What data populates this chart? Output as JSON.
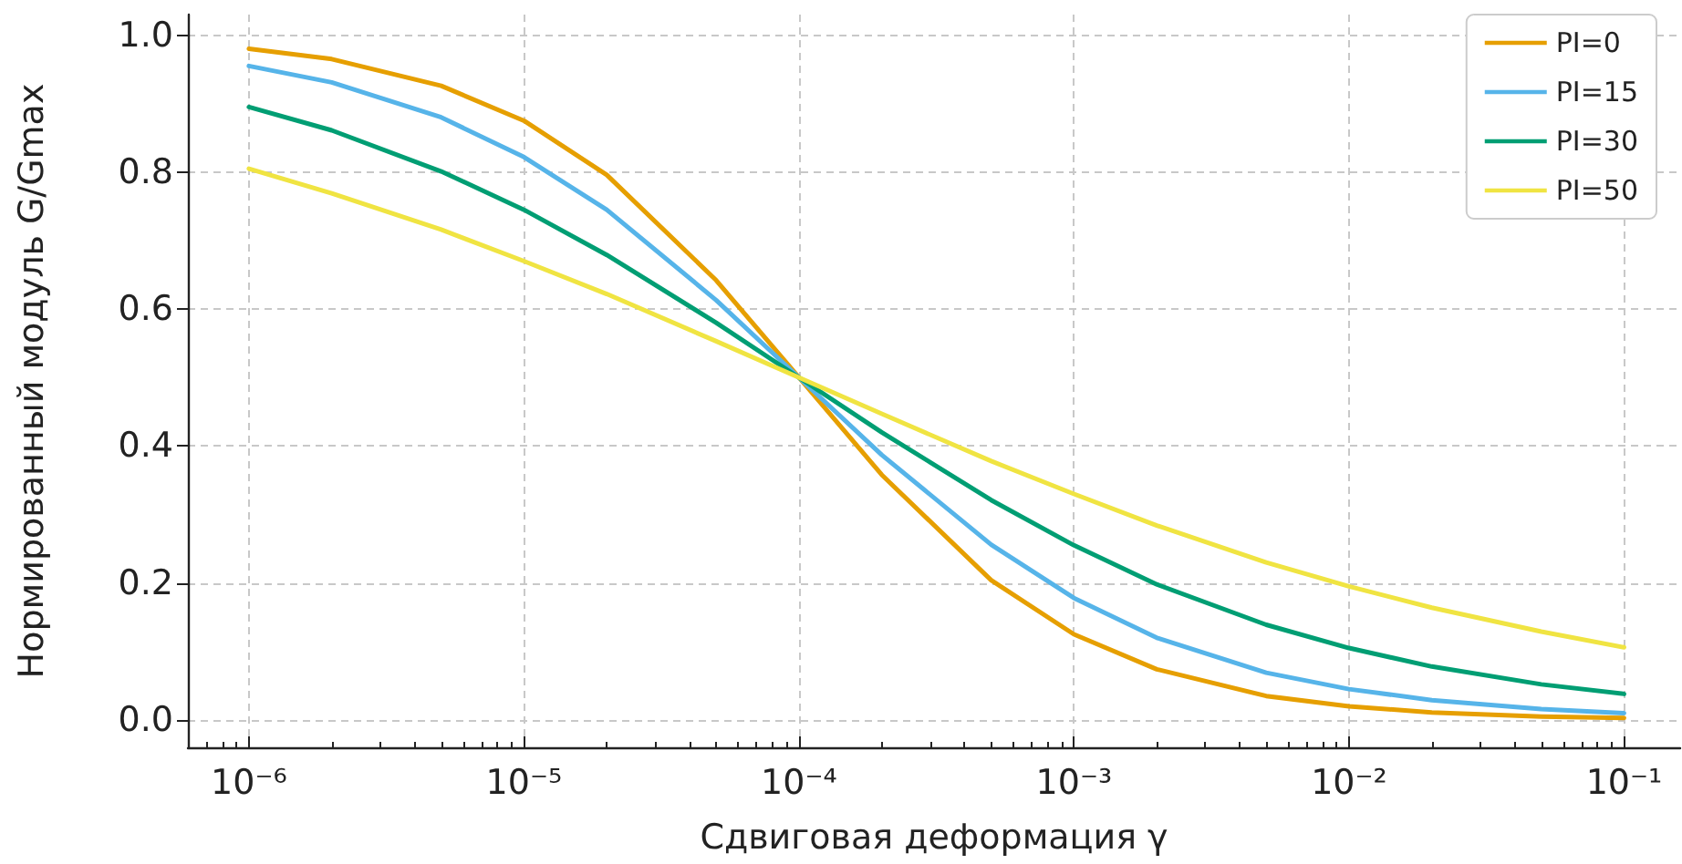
{
  "chart_data": {
    "type": "line",
    "xlabel": "Сдвиговая деформация γ",
    "ylabel": "Нормированный модуль G/Gmax",
    "x": [
      1e-06,
      2e-06,
      5e-06,
      1e-05,
      2e-05,
      5e-05,
      0.0001,
      0.0002,
      0.0005,
      0.001,
      0.002,
      0.005,
      0.01,
      0.02,
      0.05,
      0.1
    ],
    "series": [
      {
        "name": "PI=0",
        "color": "#e69f00",
        "values": [
          0.98,
          0.965,
          0.926,
          0.875,
          0.796,
          0.642,
          0.5,
          0.358,
          0.204,
          0.125,
          0.074,
          0.035,
          0.02,
          0.011,
          0.005,
          0.003
        ]
      },
      {
        "name": "PI=15",
        "color": "#56b4e9",
        "values": [
          0.955,
          0.931,
          0.88,
          0.822,
          0.745,
          0.613,
          0.5,
          0.387,
          0.256,
          0.178,
          0.12,
          0.069,
          0.045,
          0.029,
          0.016,
          0.01
        ]
      },
      {
        "name": "PI=30",
        "color": "#009e73",
        "values": [
          0.895,
          0.861,
          0.801,
          0.745,
          0.679,
          0.58,
          0.5,
          0.42,
          0.321,
          0.255,
          0.198,
          0.139,
          0.105,
          0.078,
          0.052,
          0.038
        ]
      },
      {
        "name": "PI=50",
        "color": "#f0e442",
        "values": [
          0.805,
          0.769,
          0.716,
          0.67,
          0.622,
          0.553,
          0.5,
          0.447,
          0.378,
          0.33,
          0.284,
          0.23,
          0.195,
          0.164,
          0.129,
          0.106
        ]
      }
    ],
    "log": "x",
    "xlim": [
      6e-07,
      0.16
    ],
    "ylim": [
      -0.04,
      1.03
    ],
    "xticks": [
      {
        "value": 1e-06,
        "label": "10⁻⁶"
      },
      {
        "value": 1e-05,
        "label": "10⁻⁵"
      },
      {
        "value": 0.0001,
        "label": "10⁻⁴"
      },
      {
        "value": 0.001,
        "label": "10⁻³"
      },
      {
        "value": 0.01,
        "label": "10⁻²"
      },
      {
        "value": 0.1,
        "label": "10⁻¹"
      }
    ],
    "yticks": [
      {
        "value": 0,
        "label": "0.0"
      },
      {
        "value": 0.2,
        "label": "0.2"
      },
      {
        "value": 0.4,
        "label": "0.4"
      },
      {
        "value": 0.6,
        "label": "0.6"
      },
      {
        "value": 0.8,
        "label": "0.8"
      },
      {
        "value": 1,
        "label": "1.0"
      }
    ],
    "grid": true,
    "legend": "top right",
    "marker": "none",
    "line_style": "solid"
  }
}
